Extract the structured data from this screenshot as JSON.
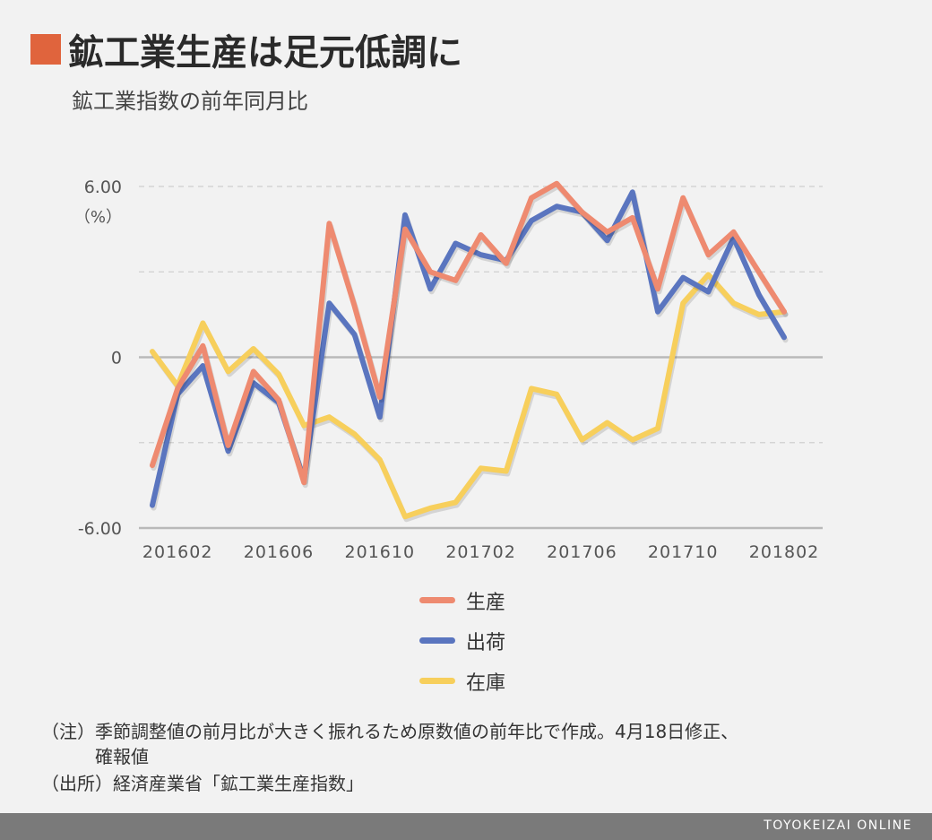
{
  "header": {
    "title": "鉱工業生産は足元低調に",
    "subtitle": "鉱工業指数の前年同月比",
    "accent_color": "#e0643d"
  },
  "chart_data": {
    "type": "line",
    "ylim": [
      -6,
      6
    ],
    "y_ticks": [
      {
        "value": 6,
        "label": "6.00"
      },
      {
        "value": 0,
        "label": "0"
      },
      {
        "value": -6,
        "label": "-6.00"
      }
    ],
    "y_unit": "（%）",
    "grid_values": [
      6,
      3,
      -3
    ],
    "x_tick_labels": [
      {
        "index": 1,
        "label": "201602"
      },
      {
        "index": 5,
        "label": "201606"
      },
      {
        "index": 9,
        "label": "201610"
      },
      {
        "index": 13,
        "label": "201702"
      },
      {
        "index": 17,
        "label": "201706"
      },
      {
        "index": 21,
        "label": "201710"
      },
      {
        "index": 25,
        "label": "201802"
      }
    ],
    "x": [
      "201601",
      "201602",
      "201603",
      "201604",
      "201605",
      "201606",
      "201607",
      "201608",
      "201609",
      "201610",
      "201611",
      "201612",
      "201701",
      "201702",
      "201703",
      "201704",
      "201705",
      "201706",
      "201707",
      "201708",
      "201709",
      "201710",
      "201711",
      "201712",
      "201801",
      "201802"
    ],
    "series": [
      {
        "name": "在庫",
        "color": "#f7cf5c",
        "values": [
          0.2,
          -1.0,
          1.2,
          -0.5,
          0.3,
          -0.6,
          -2.4,
          -2.1,
          -2.7,
          -3.6,
          -5.6,
          -5.3,
          -5.1,
          -3.9,
          -4.0,
          -1.1,
          -1.3,
          -2.9,
          -2.3,
          -2.9,
          -2.5,
          1.9,
          2.9,
          1.9,
          1.5,
          1.6
        ]
      },
      {
        "name": "出荷",
        "color": "#5a75bf",
        "values": [
          -5.2,
          -1.3,
          -0.3,
          -3.3,
          -0.9,
          -1.6,
          -4.3,
          1.9,
          0.8,
          -2.1,
          5.0,
          2.4,
          4.0,
          3.6,
          3.4,
          4.8,
          5.3,
          5.1,
          4.1,
          5.8,
          1.6,
          2.8,
          2.3,
          4.2,
          2.2,
          0.7
        ]
      },
      {
        "name": "生産",
        "color": "#ee8a70",
        "values": [
          -3.8,
          -1.1,
          0.4,
          -3.1,
          -0.5,
          -1.5,
          -4.4,
          4.7,
          1.8,
          -1.4,
          4.5,
          3.0,
          2.7,
          4.3,
          3.3,
          5.6,
          6.1,
          5.1,
          4.4,
          4.9,
          2.4,
          5.6,
          3.6,
          4.4,
          3.0,
          1.6
        ]
      }
    ],
    "legend": {
      "placement": "bottom-center",
      "order": [
        "生産",
        "出荷",
        "在庫"
      ]
    },
    "grid": true
  },
  "legend_labels": {
    "production": "生産",
    "shipment": "出荷",
    "inventory": "在庫"
  },
  "notes": {
    "note_line1": "（注）季節調整値の前月比が大きく振れるため原数値の前年比で作成。4月18日修正、",
    "note_line2": "確報値",
    "source": "（出所）経済産業省「鉱工業生産指数」"
  },
  "footer": {
    "brand": "TOYOKEIZAI ONLINE"
  }
}
